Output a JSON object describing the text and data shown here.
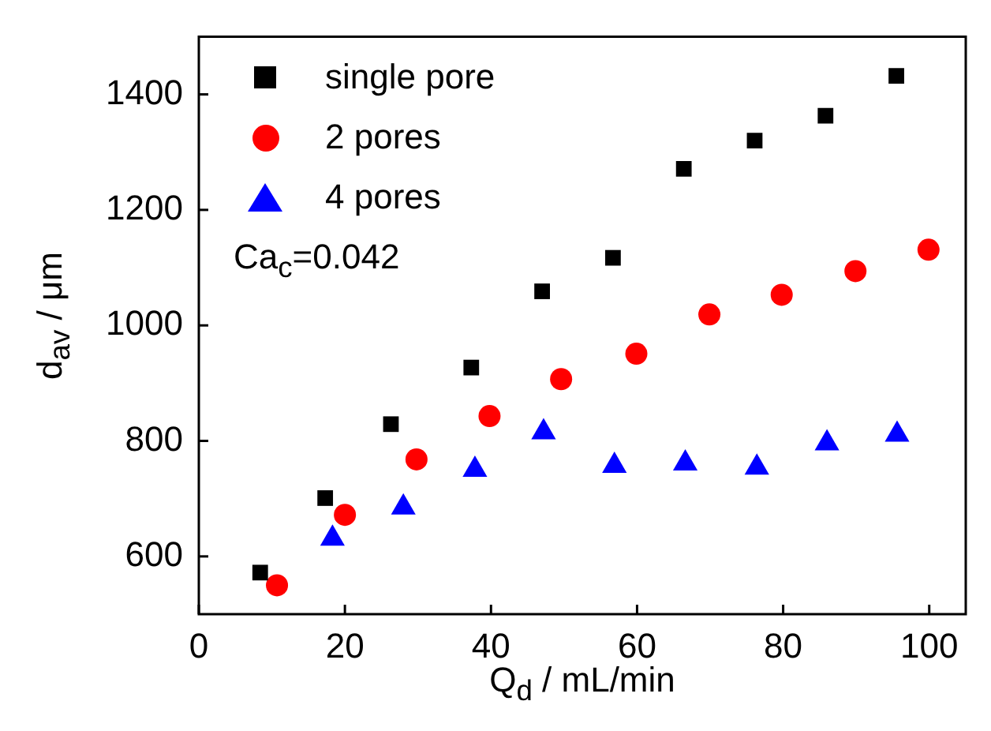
{
  "chart_data": {
    "type": "scatter",
    "xlabel": "Q$_{d}$ / mL/min",
    "ylabel": "d$_{av}$ / μm",
    "xlim": [
      0,
      105
    ],
    "xticks": [
      0,
      20,
      40,
      60,
      80,
      100
    ],
    "ylim": [
      500,
      1500
    ],
    "yticks": [
      600,
      800,
      1000,
      1200,
      1400
    ],
    "grid": false,
    "legend": "top left",
    "annotations": [
      "Ca$_{c}$=0.042"
    ],
    "series": [
      {
        "name": "single pore",
        "color": "#000000",
        "marker": "square",
        "x": [
          8.4,
          17.3,
          26.3,
          37.3,
          47.0,
          56.7,
          66.4,
          76.1,
          85.8,
          95.5
        ],
        "values": [
          572,
          701,
          829,
          927,
          1059,
          1117,
          1271,
          1320,
          1363,
          1432
        ]
      },
      {
        "name": "2 pores",
        "color": "#ff0000",
        "marker": "circle",
        "x": [
          10.7,
          20,
          29.8,
          39.8,
          49.6,
          59.9,
          69.9,
          79.8,
          89.9,
          99.9
        ],
        "values": [
          550,
          672,
          768,
          843,
          907,
          951,
          1019,
          1053,
          1094,
          1131
        ]
      },
      {
        "name": "4 pores",
        "color": "#0000ff",
        "marker": "triangle",
        "x": [
          18.3,
          28,
          37.8,
          47.2,
          56.9,
          66.6,
          76.4,
          86,
          95.6
        ],
        "values": [
          631,
          685,
          750,
          815,
          757,
          761,
          754,
          796,
          811
        ]
      }
    ]
  }
}
